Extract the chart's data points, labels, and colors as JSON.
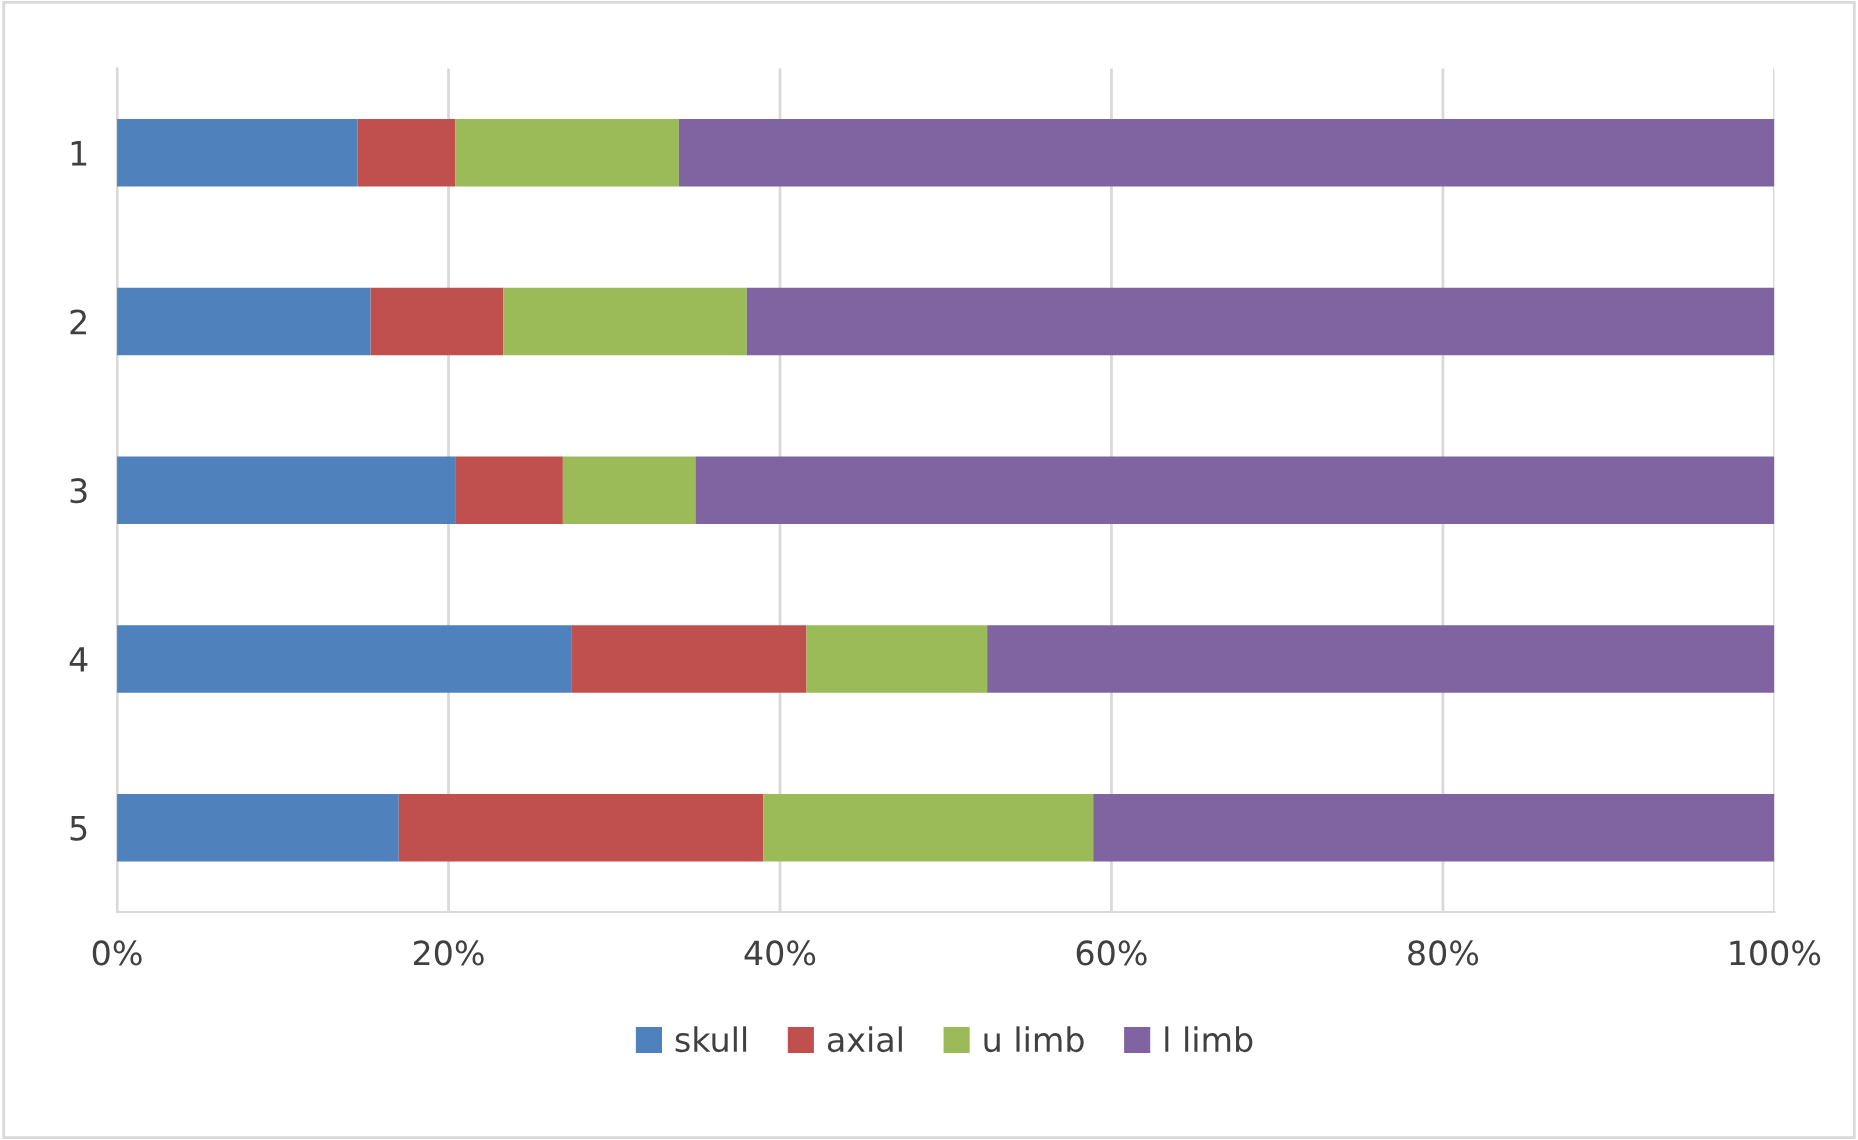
{
  "chart_data": {
    "type": "bar",
    "orientation": "horizontal",
    "stacked": true,
    "categories": [
      "1",
      "2",
      "3",
      "4",
      "5"
    ],
    "series": [
      {
        "name": "skull",
        "color": "#4f81bd",
        "values": [
          14.5,
          15.3,
          20.4,
          27.4,
          17.0
        ]
      },
      {
        "name": "axial",
        "color": "#c0504d",
        "values": [
          5.9,
          8.0,
          6.5,
          14.2,
          22.0
        ]
      },
      {
        "name": "u limb",
        "color": "#9bbb59",
        "values": [
          13.5,
          14.7,
          8.0,
          10.9,
          19.9
        ]
      },
      {
        "name": "l limb",
        "color": "#8064a2",
        "values": [
          66.1,
          62.0,
          65.1,
          47.5,
          41.1
        ]
      }
    ],
    "xlim": [
      0,
      100
    ],
    "xticks": [
      {
        "value": 0,
        "label": "0%"
      },
      {
        "value": 20,
        "label": "20%"
      },
      {
        "value": 40,
        "label": "40%"
      },
      {
        "value": 60,
        "label": "60%"
      },
      {
        "value": 80,
        "label": "80%"
      },
      {
        "value": 100,
        "label": "100%"
      }
    ],
    "grid": "x",
    "legend": "bottom"
  }
}
